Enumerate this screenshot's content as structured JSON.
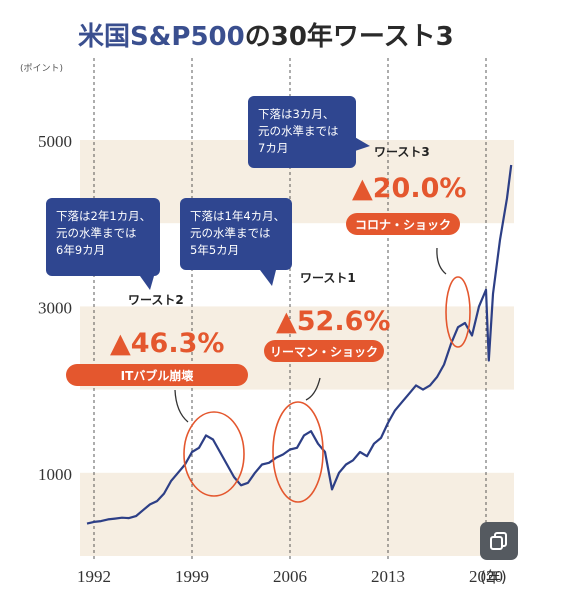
{
  "chart_data": {
    "type": "line",
    "title": {
      "part1": "米国",
      "part2": "S&P500",
      "part3": "の30年ワースト3"
    },
    "ylabel": "(ポイント)",
    "xlabel": "(年)",
    "y_ticks": [
      1000,
      3000,
      5000
    ],
    "x_ticks": [
      1992,
      1999,
      2006,
      2013,
      2020
    ],
    "y_range": [
      0,
      5000
    ],
    "x_range": [
      1991,
      2022
    ],
    "grid": "vertical dashed lines at x ticks, shaded horizontal bands",
    "colors": {
      "title_main": "#3a4f8f",
      "title_accent": "#2a2a2a",
      "line": "#2d3f86",
      "highlight": "#e4572e",
      "band": "#f6eee2",
      "callout": "#2f4690"
    },
    "series": [
      {
        "x": [
          1991.5,
          1992,
          1992.5,
          1993,
          1993.5,
          1994,
          1994.5,
          1995,
          1995.5,
          1996,
          1996.5,
          1997,
          1997.5,
          1998,
          1998.5,
          1999,
          1999.5,
          2000,
          2000.5,
          2001,
          2001.5,
          2002,
          2002.5,
          2003,
          2003.5,
          2004,
          2004.5,
          2005,
          2005.5,
          2006,
          2006.5,
          2007,
          2007.5,
          2008,
          2008.5,
          2009,
          2009.5,
          2010,
          2010.5,
          2011,
          2011.5,
          2012,
          2012.5,
          2013,
          2013.5,
          2014,
          2014.5,
          2015,
          2015.5,
          2016,
          2016.5,
          2017,
          2017.5,
          2018,
          2018.5,
          2019,
          2019.5,
          2020,
          2020.2,
          2020.5,
          2021,
          2021.5,
          2021.8
        ],
        "y": [
          390,
          410,
          420,
          440,
          450,
          460,
          455,
          480,
          550,
          620,
          660,
          750,
          900,
          1000,
          1100,
          1250,
          1300,
          1450,
          1400,
          1250,
          1100,
          950,
          850,
          880,
          1000,
          1100,
          1120,
          1180,
          1220,
          1280,
          1300,
          1450,
          1500,
          1350,
          1250,
          800,
          1000,
          1100,
          1150,
          1250,
          1200,
          1350,
          1420,
          1600,
          1750,
          1850,
          1950,
          2050,
          2000,
          2050,
          2150,
          2300,
          2550,
          2750,
          2800,
          2650,
          3000,
          3200,
          2350,
          3150,
          3800,
          4300,
          4700
        ]
      }
    ],
    "annotations": [
      {
        "rank": "ワースト2",
        "drop": "▲46.3%",
        "event": "ITバブル崩壊",
        "note": [
          "下落は2年1カ月、",
          "元の水準までは",
          "6年9カ月"
        ]
      },
      {
        "rank": "ワースト1",
        "drop": "▲52.6%",
        "event": "リーマン・ショック",
        "note": [
          "下落は1年4カ月、",
          "元の水準までは",
          "5年5カ月"
        ]
      },
      {
        "rank": "ワースト3",
        "drop": "▲20.0%",
        "event": "コロナ・ショック",
        "note": [
          "下落は3カ月、",
          "元の水準までは",
          "7カ月"
        ]
      }
    ]
  }
}
